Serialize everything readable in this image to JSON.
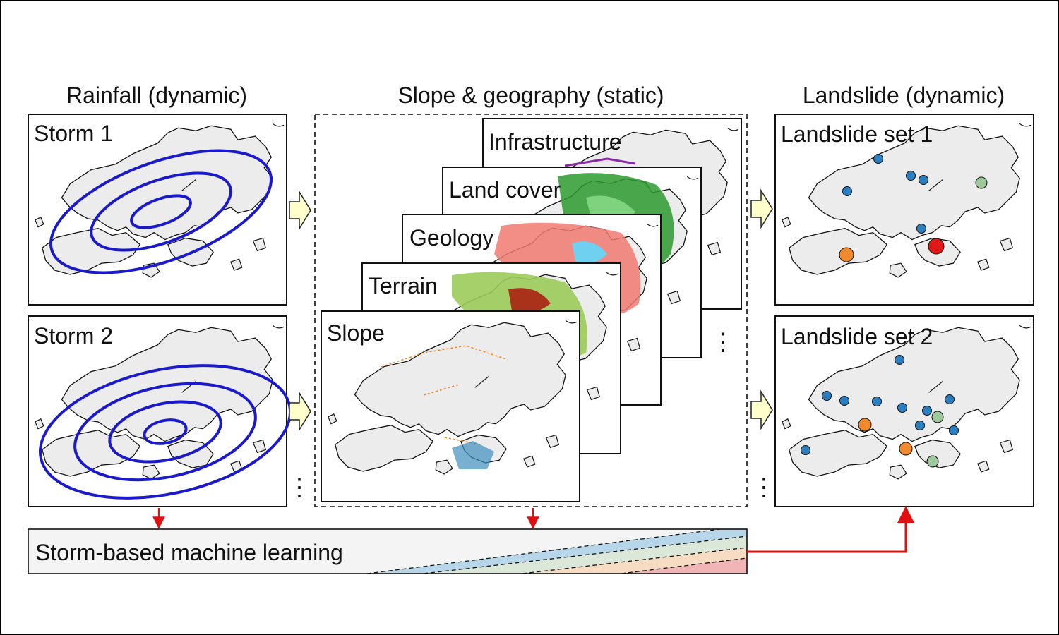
{
  "headers": {
    "rainfall": "Rainfall (dynamic)",
    "slope_geo": "Slope & geography (static)",
    "landslide": "Landslide (dynamic)"
  },
  "storms": [
    {
      "label": "Storm 1",
      "rings": 3
    },
    {
      "label": "Storm 2",
      "rings": 4
    }
  ],
  "layers": [
    "Infrastructure",
    "Land cover",
    "Geology",
    "Terrain",
    "Slope"
  ],
  "landslide_sets": [
    {
      "label": "Landslide set 1"
    },
    {
      "label": "Landslide set 2"
    }
  ],
  "ellipsis": "⋮",
  "ml_label": "Storm-based machine learning",
  "colors": {
    "storm_ring": "#1a1acc",
    "arrow_fill": "#ffffcc",
    "red_arrow": "#e01010",
    "land": "#ececec",
    "point_blue": "#2a7fc1",
    "point_orange": "#f08a2c",
    "point_green": "#9cc89a",
    "point_red": "#e01818",
    "band_blue": "#b7d6ea",
    "band_green": "#dbe7d8",
    "band_orange": "#f5dcc2",
    "band_red": "#f2b5b5"
  }
}
